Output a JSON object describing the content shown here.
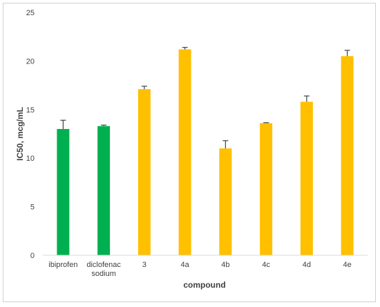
{
  "chart_data": {
    "type": "bar",
    "title": "",
    "xlabel": "compound",
    "ylabel": "IC50, mcg/mL",
    "ylim": [
      0,
      25
    ],
    "yticks": [
      0,
      5,
      10,
      15,
      20,
      25
    ],
    "grid": false,
    "legend": "none",
    "categories": [
      {
        "lines": [
          "ibiprofen"
        ]
      },
      {
        "lines": [
          "diclofenac",
          "sodium"
        ]
      },
      {
        "lines": [
          "3"
        ]
      },
      {
        "lines": [
          "4a"
        ]
      },
      {
        "lines": [
          "4b"
        ]
      },
      {
        "lines": [
          "4c"
        ]
      },
      {
        "lines": [
          "4d"
        ]
      },
      {
        "lines": [
          "4e"
        ]
      }
    ],
    "values": [
      13.0,
      13.3,
      17.1,
      21.2,
      11.0,
      13.6,
      15.8,
      20.5
    ],
    "errors": [
      0.9,
      0.1,
      0.3,
      0.2,
      0.8,
      0.05,
      0.6,
      0.6
    ],
    "colors": [
      "#00b050",
      "#00b050",
      "#ffc000",
      "#ffc000",
      "#ffc000",
      "#ffc000",
      "#ffc000",
      "#ffc000"
    ],
    "axis_color": "#d9d9d9",
    "errorbar_color": "#404040"
  }
}
